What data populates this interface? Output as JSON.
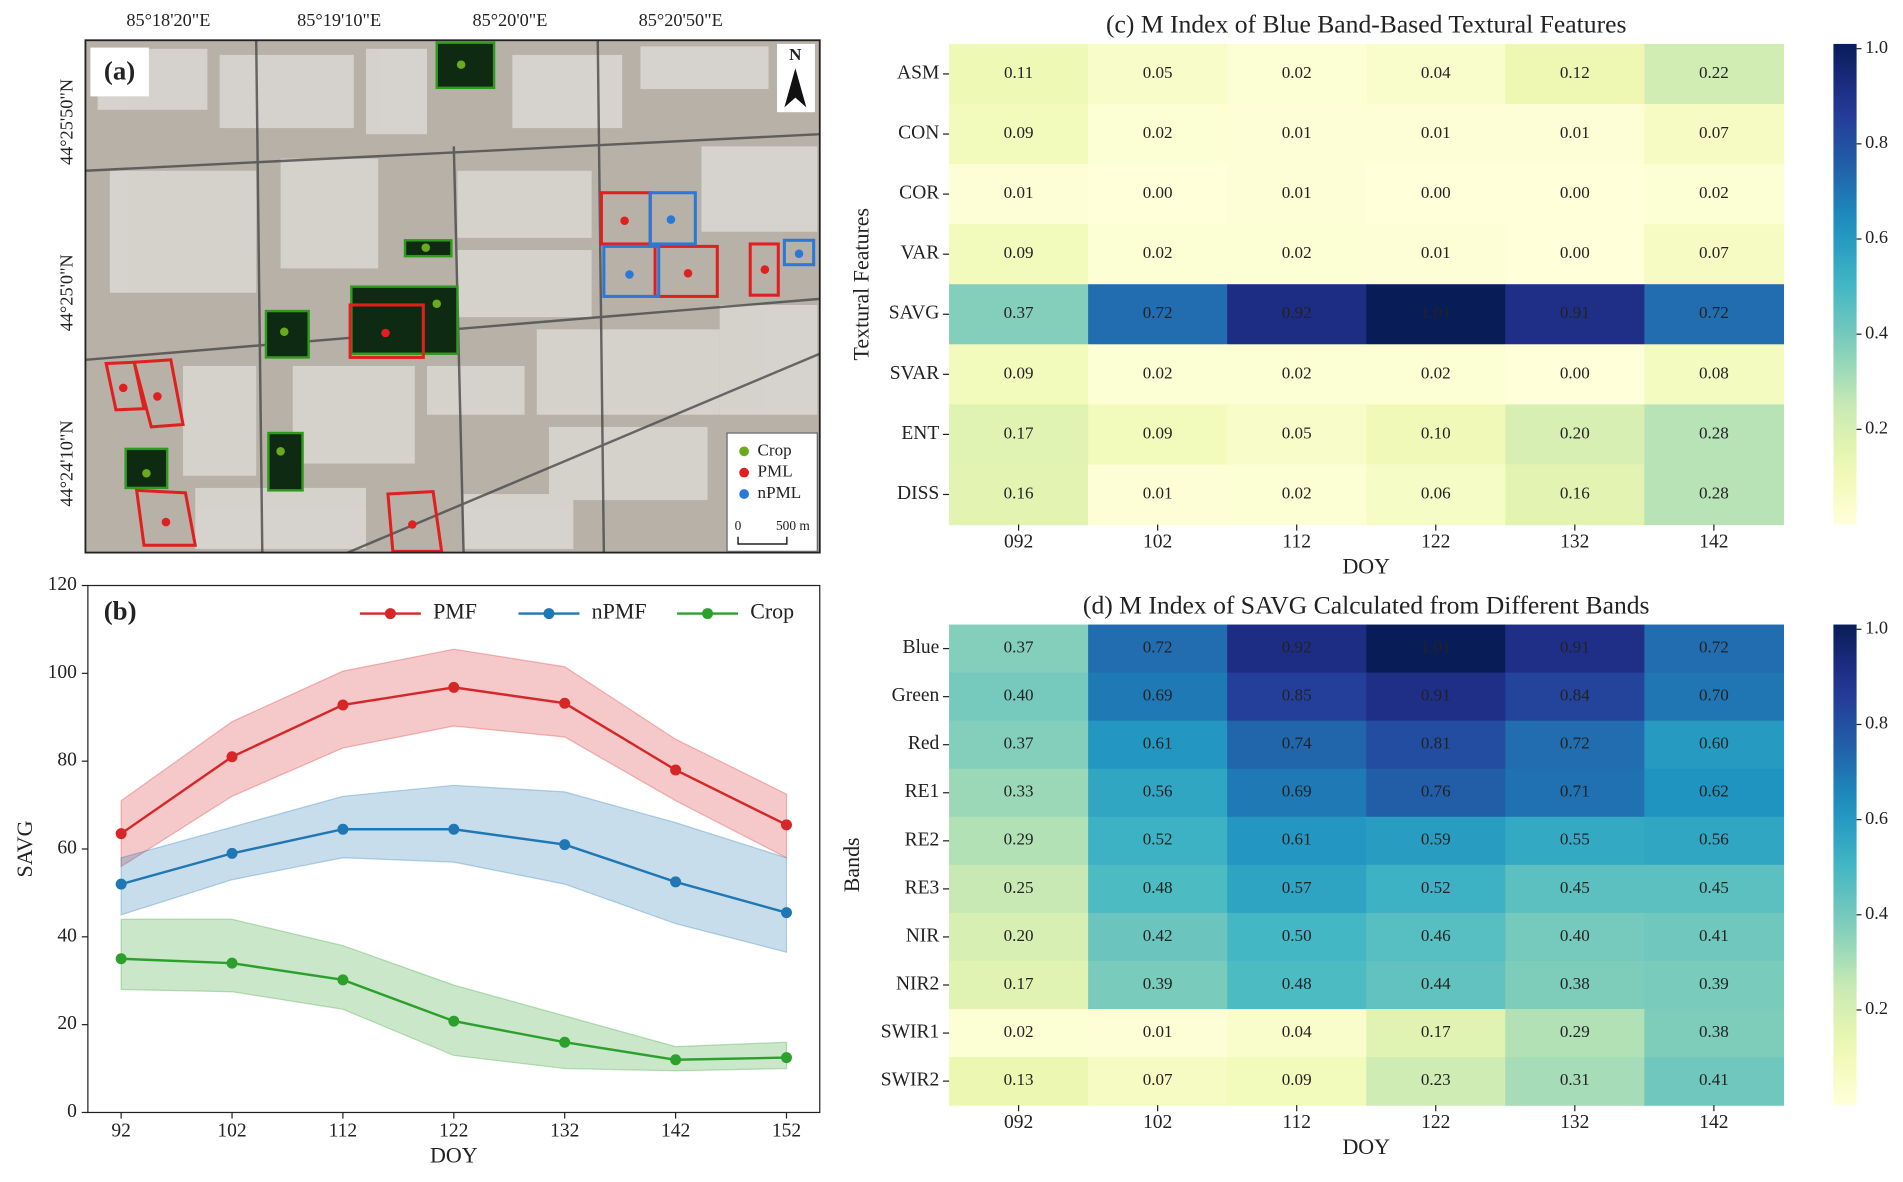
{
  "map": {
    "panel_label": "(a)",
    "top_labels": [
      "85°18'20\"E",
      "85°19'10\"E",
      "85°20'0\"E",
      "85°20'50\"E"
    ],
    "left_labels": [
      "44°25'50\"N",
      "44°25'0\"N",
      "44°24'10\"N"
    ],
    "north": "N",
    "legend": [
      {
        "label": "Crop",
        "color": "#6aaa1e"
      },
      {
        "label": "PML",
        "color": "#e02020"
      },
      {
        "label": "nPML",
        "color": "#2a78d8"
      }
    ],
    "scale_labels": [
      "0",
      "500 m"
    ]
  },
  "chart_data": [
    {
      "type": "line",
      "panel_label": "(b)",
      "xlabel": "DOY",
      "ylabel": "SAVG",
      "x": [
        92,
        102,
        112,
        122,
        132,
        142,
        152
      ],
      "xlim": [
        89,
        155
      ],
      "xticks": [
        92,
        102,
        112,
        122,
        132,
        142,
        152
      ],
      "ylim": [
        0,
        120
      ],
      "yticks": [
        0,
        20,
        40,
        60,
        80,
        100,
        120
      ],
      "legend": "upper right",
      "series": [
        {
          "name": "PMF",
          "color": "#d62728",
          "values": [
            63.5,
            81,
            92.8,
            96.8,
            93.2,
            78,
            65.5
          ],
          "lower": [
            56,
            72,
            83,
            88,
            85.5,
            71,
            58
          ],
          "upper": [
            71,
            89,
            100.5,
            105.5,
            101.5,
            85,
            72.5
          ]
        },
        {
          "name": "nPMF",
          "color": "#1f77b4",
          "values": [
            52,
            59,
            64.5,
            64.5,
            61,
            52.5,
            45.5
          ],
          "lower": [
            45,
            53,
            58,
            57,
            52,
            43,
            36.5
          ],
          "upper": [
            58,
            65,
            72,
            74.5,
            73,
            66,
            58
          ]
        },
        {
          "name": "Crop",
          "color": "#2ca02c",
          "values": [
            35,
            34,
            30.2,
            20.8,
            16,
            12,
            12.5
          ],
          "lower": [
            28,
            27.5,
            23.5,
            13,
            10,
            9.5,
            10
          ],
          "upper": [
            44,
            44,
            38,
            29,
            22,
            15,
            16
          ]
        }
      ]
    },
    {
      "type": "heatmap",
      "title": "(c) M Index of Blue Band-Based Textural Features",
      "xlabel": "DOY",
      "ylabel": "Textural Features",
      "categories": [
        "092",
        "102",
        "112",
        "122",
        "132",
        "142"
      ],
      "rows": [
        "ASM",
        "CON",
        "COR",
        "VAR",
        "SAVG",
        "SVAR",
        "ENT",
        "DISS"
      ],
      "colormap": "YlGnBu",
      "zlim": [
        0,
        1.01
      ],
      "zticks": [
        0.2,
        0.4,
        0.6,
        0.8,
        {
          "value": 1,
          "label": "1.0"
        }
      ],
      "values": [
        [
          0.11,
          0.05,
          0.02,
          0.04,
          0.12,
          0.22
        ],
        [
          0.09,
          0.02,
          0.01,
          0.01,
          0.01,
          0.07
        ],
        [
          0.01,
          0,
          0.01,
          0,
          0,
          0.02
        ],
        [
          0.09,
          0.02,
          0.02,
          0.01,
          0,
          0.07
        ],
        [
          0.37,
          0.72,
          0.92,
          1.01,
          0.91,
          0.72
        ],
        [
          0.09,
          0.02,
          0.02,
          0.02,
          0,
          0.08
        ],
        [
          0.17,
          0.09,
          0.05,
          0.1,
          0.2,
          0.28
        ],
        [
          0.16,
          0.01,
          0.02,
          0.06,
          0.16,
          0.28
        ]
      ],
      "value_labels": [
        [
          "0.11",
          "0.05",
          "0.02",
          "0.04",
          "0.12",
          "0.22"
        ],
        [
          "0.09",
          "0.02",
          "0.01",
          "0.01",
          "0.01",
          "0.07"
        ],
        [
          "0.01",
          "0.00",
          "0.01",
          "0.00",
          "0.00",
          "0.02"
        ],
        [
          "0.09",
          "0.02",
          "0.02",
          "0.01",
          "0.00",
          "0.07"
        ],
        [
          "0.37",
          "0.72",
          "0.92",
          "1.01",
          "0.91",
          "0.72"
        ],
        [
          "0.09",
          "0.02",
          "0.02",
          "0.02",
          "0.00",
          "0.08"
        ],
        [
          "0.17",
          "0.09",
          "0.05",
          "0.10",
          "0.20",
          "0.28"
        ],
        [
          "0.16",
          "0.01",
          "0.02",
          "0.06",
          "0.16",
          "0.28"
        ]
      ]
    },
    {
      "type": "heatmap",
      "title": "(d) M Index of SAVG Calculated from Different Bands",
      "xlabel": "DOY",
      "ylabel": "Bands",
      "categories": [
        "092",
        "102",
        "112",
        "122",
        "132",
        "142"
      ],
      "rows": [
        "Blue",
        "Green",
        "Red",
        "RE1",
        "RE2",
        "RE3",
        "NIR",
        "NIR2",
        "SWIR1",
        "SWIR2"
      ],
      "colormap": "YlGnBu",
      "zlim": [
        0,
        1.01
      ],
      "zticks": [
        0.2,
        0.4,
        0.6,
        0.8,
        {
          "value": 1,
          "label": "1.0"
        }
      ],
      "values": [
        [
          0.37,
          0.72,
          0.92,
          1.01,
          0.91,
          0.72
        ],
        [
          0.4,
          0.69,
          0.85,
          0.91,
          0.84,
          0.7
        ],
        [
          0.37,
          0.61,
          0.74,
          0.81,
          0.72,
          0.6
        ],
        [
          0.33,
          0.56,
          0.69,
          0.76,
          0.71,
          0.62
        ],
        [
          0.29,
          0.52,
          0.61,
          0.59,
          0.55,
          0.56
        ],
        [
          0.25,
          0.48,
          0.57,
          0.52,
          0.45,
          0.45
        ],
        [
          0.2,
          0.42,
          0.5,
          0.46,
          0.4,
          0.41
        ],
        [
          0.17,
          0.39,
          0.48,
          0.44,
          0.38,
          0.39
        ],
        [
          0.02,
          0.01,
          0.04,
          0.17,
          0.29,
          0.38
        ],
        [
          0.13,
          0.07,
          0.09,
          0.23,
          0.31,
          0.41
        ]
      ],
      "value_labels": [
        [
          "0.37",
          "0.72",
          "0.92",
          "1.01",
          "0.91",
          "0.72"
        ],
        [
          "0.40",
          "0.69",
          "0.85",
          "0.91",
          "0.84",
          "0.70"
        ],
        [
          "0.37",
          "0.61",
          "0.74",
          "0.81",
          "0.72",
          "0.60"
        ],
        [
          "0.33",
          "0.56",
          "0.69",
          "0.76",
          "0.71",
          "0.62"
        ],
        [
          "0.29",
          "0.52",
          "0.61",
          "0.59",
          "0.55",
          "0.56"
        ],
        [
          "0.25",
          "0.48",
          "0.57",
          "0.52",
          "0.45",
          "0.45"
        ],
        [
          "0.20",
          "0.42",
          "0.50",
          "0.46",
          "0.40",
          "0.41"
        ],
        [
          "0.17",
          "0.39",
          "0.48",
          "0.44",
          "0.38",
          "0.39"
        ],
        [
          "0.02",
          "0.01",
          "0.04",
          "0.17",
          "0.29",
          "0.38"
        ],
        [
          "0.13",
          "0.07",
          "0.09",
          "0.23",
          "0.31",
          "0.41"
        ]
      ]
    }
  ]
}
